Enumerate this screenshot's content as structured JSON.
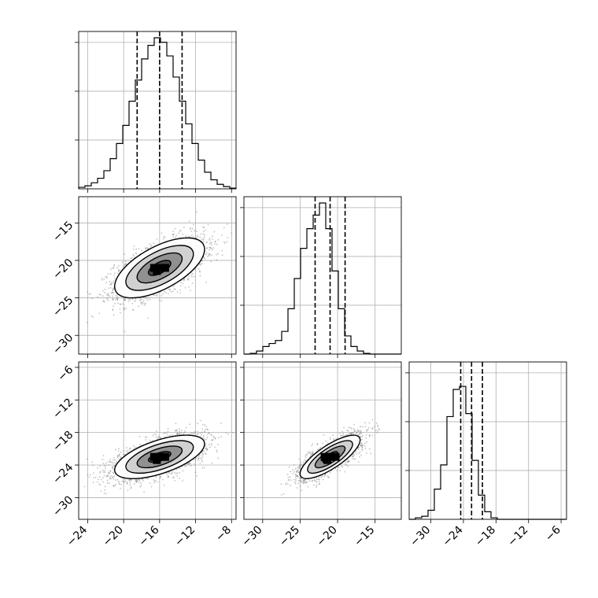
{
  "chart_data": {
    "type": "corner",
    "parameters": [
      {
        "name": "",
        "mean": -16,
        "std": 2.5,
        "q16": -18.5,
        "q50": -16.0,
        "q84": -13.5
      },
      {
        "name": "",
        "mean": -21,
        "std": 2.0,
        "q16": -23.0,
        "q50": -21.0,
        "q84": -19.0
      },
      {
        "name": "",
        "mean": -22.5,
        "std": 2.0,
        "q16": -24.5,
        "q50": -22.5,
        "q84": -20.5
      }
    ],
    "ranges": [
      [
        -25,
        -7.5
      ],
      [
        -32.5,
        -11.5
      ],
      [
        -34,
        -5
      ]
    ],
    "x_ticks": [
      [
        -24,
        -20,
        -16,
        -12,
        -8
      ],
      [
        -30,
        -25,
        -20,
        -15
      ],
      [
        -30,
        -24,
        -18,
        -12,
        -6
      ]
    ],
    "y_ticks": {
      "1": [
        -15,
        -20,
        -25,
        -30
      ],
      "2": [
        -6,
        -12,
        -18,
        -24,
        -30
      ]
    },
    "tick_labels_x": [
      [
        "−24",
        "−20",
        "−16",
        "−12",
        "−8"
      ],
      [
        "−30",
        "−25",
        "−20",
        "−15"
      ],
      [
        "−30",
        "−24",
        "−18",
        "−12",
        "−6"
      ]
    ],
    "tick_labels_y": {
      "1": [
        "−15",
        "−20",
        "−25",
        "−30"
      ],
      "2": [
        "−6",
        "−12",
        "−18",
        "−24",
        "−30"
      ]
    },
    "histograms": [
      {
        "bin_start": -25,
        "bin_width": 0.7,
        "counts": [
          0.01,
          0.02,
          0.04,
          0.07,
          0.12,
          0.2,
          0.3,
          0.42,
          0.58,
          0.72,
          0.86,
          0.95,
          1.0,
          0.97,
          0.88,
          0.74,
          0.58,
          0.43,
          0.3,
          0.19,
          0.11,
          0.06,
          0.03,
          0.015,
          0.005
        ]
      },
      {
        "bin_start": -32.5,
        "bin_width": 0.84,
        "counts": [
          0.0,
          0.005,
          0.02,
          0.05,
          0.07,
          0.09,
          0.15,
          0.3,
          0.5,
          0.7,
          0.83,
          0.92,
          1.0,
          0.83,
          0.55,
          0.3,
          0.12,
          0.05,
          0.02,
          0.005,
          0.0,
          0.0,
          0.0,
          0.0,
          0.0
        ]
      },
      {
        "bin_start": -34,
        "bin_width": 1.16,
        "counts": [
          0.0,
          0.01,
          0.02,
          0.06,
          0.2,
          0.36,
          0.68,
          0.86,
          0.88,
          0.7,
          0.39,
          0.16,
          0.05,
          0.01,
          0.0,
          0.0,
          0.0,
          0.0,
          0.0,
          0.0,
          0.0,
          0.0,
          0.0,
          0.0,
          0.0
        ]
      }
    ],
    "correlations": {
      "1-0": 0.62,
      "2-0": 0.6,
      "2-1": 0.78
    },
    "contour_levels_sigma": [
      0.5,
      1.0,
      1.5,
      2.0
    ],
    "grid": true,
    "quantile_lines": "dashed"
  }
}
